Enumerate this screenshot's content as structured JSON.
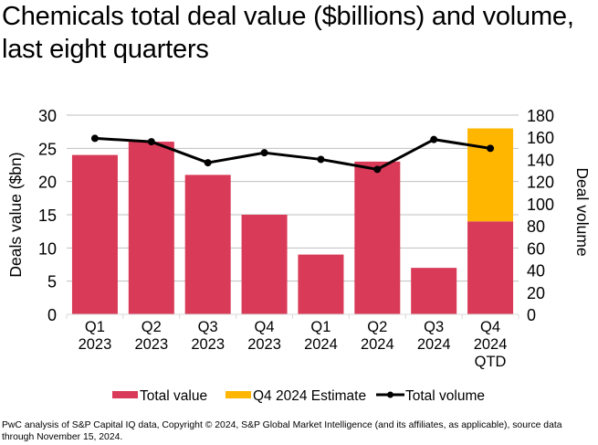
{
  "chart_data": {
    "type": "bar",
    "title_lines": [
      "Chemicals total deal value ($billions) and volume,",
      "last eight quarters"
    ],
    "categories": [
      [
        "Q1",
        "2023"
      ],
      [
        "Q2",
        "2023"
      ],
      [
        "Q3",
        "2023"
      ],
      [
        "Q4",
        "2023"
      ],
      [
        "Q1",
        "2024"
      ],
      [
        "Q2",
        "2024"
      ],
      [
        "Q3",
        "2024"
      ],
      [
        "Q4",
        "2024",
        "QTD"
      ]
    ],
    "series": [
      {
        "name": "Total value",
        "type": "bar",
        "axis": "left",
        "color": "#D93A57",
        "values": [
          24,
          26,
          21,
          15,
          9,
          23,
          7,
          14
        ]
      },
      {
        "name": "Q4 2024 Estimate",
        "type": "bar-stacked",
        "axis": "left",
        "color": "#FFB600",
        "values": [
          0,
          0,
          0,
          0,
          0,
          0,
          0,
          14
        ]
      },
      {
        "name": "Total volume",
        "type": "line",
        "axis": "right",
        "color": "#000000",
        "values": [
          159,
          156,
          137,
          146,
          140,
          131,
          158,
          150
        ]
      }
    ],
    "ylabel": "Deals value ($bn)",
    "ylim": [
      0,
      30
    ],
    "yticks": [
      0,
      5,
      10,
      15,
      20,
      25,
      30
    ],
    "y2label": "Deal volume",
    "y2lim": [
      0,
      180
    ],
    "y2ticks": [
      0,
      20,
      40,
      60,
      80,
      100,
      120,
      140,
      160,
      180
    ],
    "grid": true,
    "legend": "bottom",
    "legend_entries": [
      "Total value",
      "Q4 2024 Estimate",
      "Total volume"
    ]
  },
  "footer_lines": [
    "PwC analysis of S&P Capital IQ data, Copyright © 2024, S&P Global Market Intelligence (and its affiliates, as applicable), source data",
    "through November 15, 2024."
  ]
}
